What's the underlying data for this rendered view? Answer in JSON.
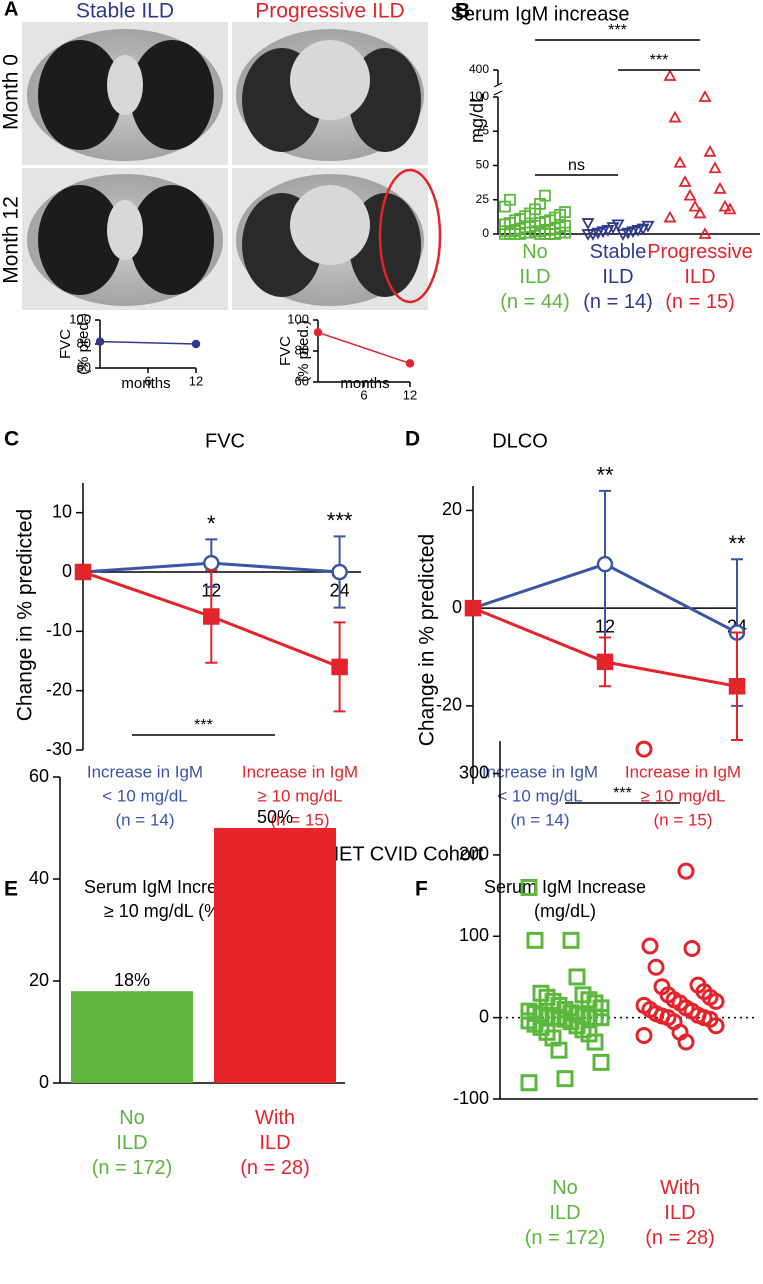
{
  "images": {
    "panel": "A",
    "columns": [
      "Stable ILD",
      "Progressive ILD"
    ],
    "rows": [
      "Month 0",
      "Month 12"
    ]
  },
  "heading": "USIDNET CVID Cohort",
  "chart_data": [
    {
      "type": "line",
      "ylabel": [
        "FVC",
        "(% pred.)"
      ],
      "xlabel": "months",
      "x": [
        0,
        12
      ],
      "xlim": [
        0,
        12
      ],
      "xticks": [
        6,
        12
      ],
      "ylim": [
        60,
        100
      ],
      "yticks": [
        60,
        80,
        100
      ],
      "series": [
        {
          "color": "#2e3a8c",
          "marker": "circle",
          "values": [
            82,
            80
          ]
        }
      ]
    },
    {
      "type": "line",
      "ylabel": [
        "FVC",
        "(% pred.)"
      ],
      "xlabel": "months",
      "x": [
        0,
        12
      ],
      "xlim": [
        0,
        12
      ],
      "xticks": [
        6,
        12
      ],
      "ylim": [
        60,
        100
      ],
      "yticks": [
        60,
        80,
        100
      ],
      "series": [
        {
          "color": "#e3242b",
          "marker": "circle",
          "values": [
            92,
            72
          ]
        }
      ]
    },
    {
      "type": "scatter",
      "panel": "B",
      "title": "Serum IgM increase",
      "ylabel": "mg/dL",
      "categories": [
        "No ILD",
        "Stable ILD",
        "Progressive ILD"
      ],
      "group_sizes": [
        "(n = 44)",
        "(n = 14)",
        "(n = 15)"
      ],
      "ylim": [
        0,
        400
      ],
      "yticks": [
        0,
        25,
        50,
        75,
        100,
        400
      ],
      "axis_break": [
        100,
        350
      ],
      "series": [
        {
          "color": "#5cb83c",
          "marker": "square",
          "values": [
            0,
            0,
            0,
            0,
            0,
            0,
            0,
            0,
            1,
            1,
            1,
            1,
            2,
            2,
            2,
            2,
            3,
            3,
            3,
            4,
            4,
            5,
            5,
            5,
            6,
            6,
            7,
            8,
            8,
            9,
            10,
            10,
            11,
            12,
            13,
            14,
            15,
            16,
            18,
            20,
            22,
            25,
            28,
            2
          ]
        },
        {
          "color": "#2e3a8c",
          "marker": "triangle-down",
          "values": [
            0,
            0,
            0,
            1,
            1,
            2,
            2,
            3,
            3,
            4,
            5,
            6,
            7,
            8
          ]
        },
        {
          "color": "#e3242b",
          "marker": "triangle-up",
          "values": [
            380,
            100,
            85,
            60,
            52,
            48,
            38,
            33,
            28,
            20,
            20,
            18,
            15,
            12,
            0
          ]
        }
      ],
      "brackets": [
        {
          "text": "***",
          "between": [
            0,
            2
          ]
        },
        {
          "text": "***",
          "between": [
            1,
            2
          ]
        },
        {
          "text": "ns",
          "between": [
            0,
            1
          ]
        }
      ]
    },
    {
      "type": "line",
      "panel": "C",
      "title": "FVC",
      "ylabel": "Change in % predicted",
      "x": [
        0,
        12,
        24
      ],
      "xlim": [
        0,
        26
      ],
      "xticks": [
        12,
        24
      ],
      "ylim": [
        -30,
        15
      ],
      "yticks": [
        -30,
        -20,
        -10,
        0,
        10
      ],
      "series": [
        {
          "color": "#3a56a5",
          "marker": "circle-open",
          "label": [
            "Increase in IgM",
            "< 10 mg/dL",
            "(n = 14)"
          ],
          "values": [
            0,
            1.5,
            0
          ],
          "errors": [
            0,
            4,
            6
          ]
        },
        {
          "color": "#e3242b",
          "marker": "square",
          "label": [
            "Increase in IgM",
            "≥ 10 mg/dL",
            "(n = 15)"
          ],
          "values": [
            0,
            -7.5,
            -16
          ],
          "errors": [
            0,
            7.8,
            7.5
          ]
        }
      ],
      "annotations": [
        {
          "text": "*",
          "at": 1
        },
        {
          "text": "***",
          "at": 2
        }
      ]
    },
    {
      "type": "line",
      "panel": "D",
      "title": "DLCO",
      "ylabel": "Change in % predicted",
      "x": [
        0,
        12,
        24
      ],
      "xlim": [
        0,
        24
      ],
      "xticks": [
        12,
        24
      ],
      "ylim": [
        -36,
        25
      ],
      "yticks": [
        -20,
        0,
        20
      ],
      "series": [
        {
          "color": "#3a56a5",
          "marker": "circle-open",
          "label": [
            "Increase in IgM",
            "< 10 mg/dL",
            "(n = 14)"
          ],
          "values": [
            0,
            9,
            -5
          ],
          "errors": [
            0,
            15,
            15
          ]
        },
        {
          "color": "#e3242b",
          "marker": "square",
          "label": [
            "Increase in IgM",
            "≥ 10 mg/dL",
            "(n = 15)"
          ],
          "values": [
            0,
            -11,
            -16
          ],
          "errors": [
            0,
            5,
            11
          ]
        }
      ],
      "annotations": [
        {
          "text": "**",
          "at": 1
        },
        {
          "text": "**",
          "at": 2
        }
      ]
    },
    {
      "type": "bar",
      "panel": "E",
      "title": [
        "Serum IgM Increase",
        "≥ 10 mg/dL (%)"
      ],
      "categories": [
        "No ILD",
        "With ILD"
      ],
      "group_sizes": [
        "(n = 172)",
        "(n = 28)"
      ],
      "values": [
        18,
        50
      ],
      "value_labels": [
        "18%",
        "50%"
      ],
      "colors": [
        "#5db53e",
        "#e8232a"
      ],
      "ylim": [
        0,
        60
      ],
      "yticks": [
        0,
        20,
        40,
        60
      ],
      "brackets": [
        {
          "text": "***",
          "between": [
            0,
            1
          ]
        }
      ]
    },
    {
      "type": "scatter",
      "panel": "F",
      "title": [
        "Serum IgM Increase",
        "(mg/dL)"
      ],
      "categories": [
        "No ILD",
        "With ILD"
      ],
      "group_sizes": [
        "(n = 172)",
        "(n = 28)"
      ],
      "ylim": [
        -100,
        340
      ],
      "yticks": [
        -100,
        0,
        100,
        200,
        300
      ],
      "zero_line": true,
      "series": [
        {
          "color": "#5cb83c",
          "marker": "square",
          "values": [
            160,
            95,
            95,
            50,
            30,
            28,
            25,
            22,
            20,
            18,
            15,
            12,
            10,
            8,
            6,
            5,
            4,
            3,
            2,
            1,
            0,
            0,
            0,
            0,
            0,
            -2,
            -4,
            -5,
            -8,
            -10,
            -12,
            -15,
            -18,
            -20,
            -25,
            -30,
            -40,
            -55,
            -75,
            -80
          ]
        },
        {
          "color": "#e3242b",
          "marker": "circle",
          "values": [
            330,
            180,
            88,
            85,
            62,
            40,
            38,
            32,
            28,
            25,
            22,
            20,
            18,
            15,
            12,
            10,
            8,
            5,
            3,
            2,
            0,
            0,
            -2,
            -5,
            -10,
            -18,
            -22,
            -30
          ]
        }
      ],
      "brackets": [
        {
          "text": "***",
          "between": [
            0,
            1
          ]
        }
      ]
    }
  ]
}
